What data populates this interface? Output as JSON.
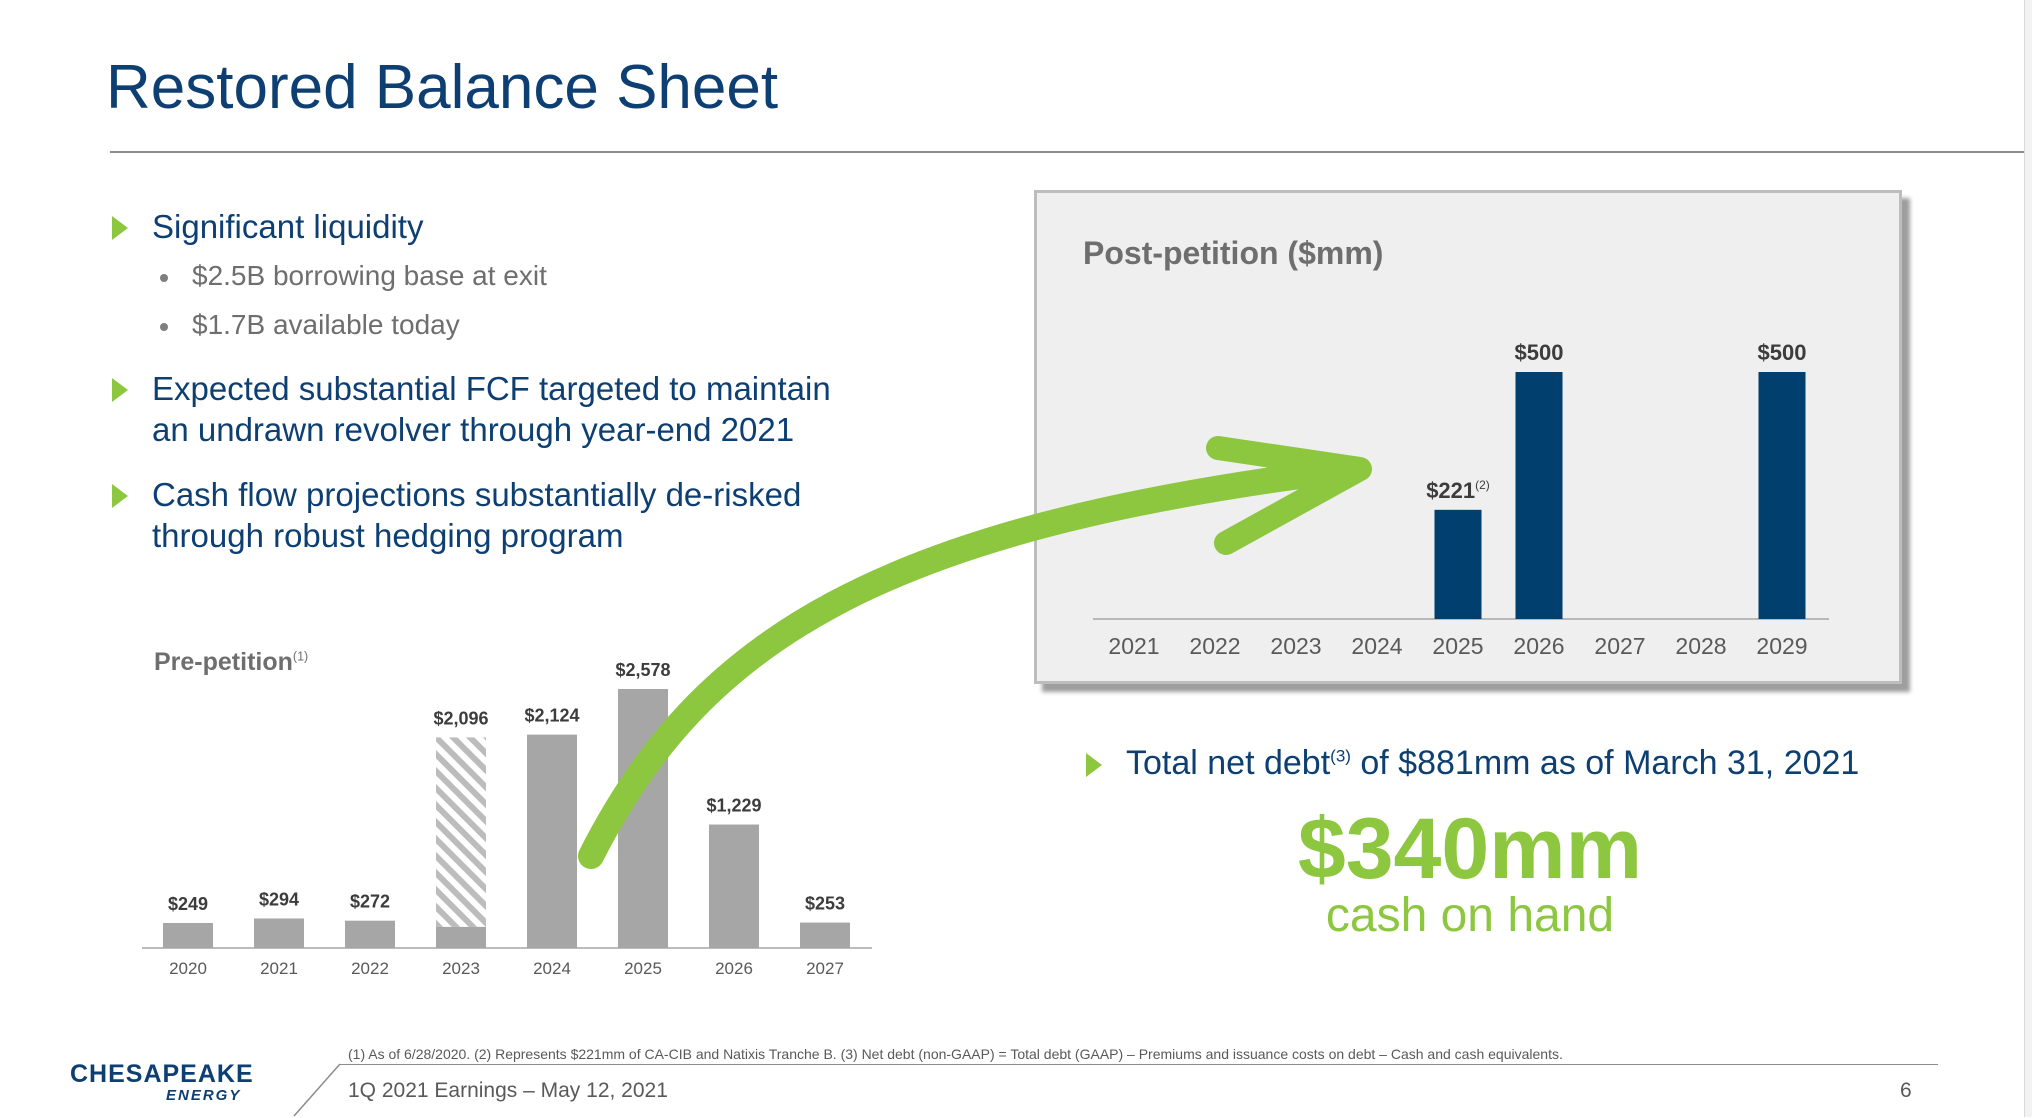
{
  "page": {
    "title": "Restored Balance Sheet"
  },
  "bullets": [
    {
      "text": "Significant liquidity",
      "subs": [
        "$2.5B borrowing base at exit",
        "$1.7B available today"
      ]
    },
    {
      "line1": "Expected substantial FCF targeted to maintain",
      "line2": "an undrawn revolver through year-end 2021"
    },
    {
      "line1": "Cash flow projections substantially de-risked",
      "line2": "through robust hedging program"
    }
  ],
  "net_debt": {
    "prefix": "Total net debt",
    "sup": "(3)",
    "suffix": " of $881mm as of March 31, 2021"
  },
  "cash": {
    "amount": "$340mm",
    "label": "cash on hand"
  },
  "footer": {
    "footnote": "(1)  As of 6/28/2020.  (2)  Represents $221mm of CA-CIB and Natixis Tranche B.  (3)  Net debt (non-GAAP) = Total debt (GAAP) – Premiums and issuance costs on debt – Cash and cash equivalents.",
    "text": "1Q 2021 Earnings – May 12, 2021",
    "page_number": "6",
    "logo_main": "CHESAPEAKE",
    "logo_sub": "ENERGY"
  },
  "colors": {
    "title_blue": "#0d3f73",
    "accent_green": "#8dc63f",
    "pre_bar_gray": "#a6a6a6",
    "post_bar_navy": "#003f6e"
  },
  "chart_data": [
    {
      "type": "bar",
      "title": "Pre-petition",
      "title_sup": "(1)",
      "categories": [
        "2020",
        "2021",
        "2022",
        "2023",
        "2024",
        "2025",
        "2026",
        "2027"
      ],
      "values": [
        249,
        294,
        272,
        2096,
        2124,
        2578,
        1229,
        253
      ],
      "labels": [
        "$249",
        "$294",
        "$272",
        "$2,096",
        "$2,124",
        "$2,578",
        "$1,229",
        "$253"
      ],
      "hatched_portion": {
        "category": "2023",
        "solid_base": 210
      },
      "ylim": [
        0,
        2800
      ],
      "grid": false
    },
    {
      "type": "bar",
      "title": "Post-petition ($mm)",
      "categories": [
        "2021",
        "2022",
        "2023",
        "2024",
        "2025",
        "2026",
        "2027",
        "2028",
        "2029"
      ],
      "values": [
        0,
        0,
        0,
        0,
        221,
        500,
        0,
        0,
        500
      ],
      "labels": [
        "",
        "",
        "",
        "",
        "$221",
        "$500",
        "",
        "",
        "$500"
      ],
      "label_sups": [
        "",
        "",
        "",
        "",
        "(2)",
        "",
        "",
        "",
        ""
      ],
      "ylim": [
        0,
        540
      ],
      "grid": false
    }
  ]
}
